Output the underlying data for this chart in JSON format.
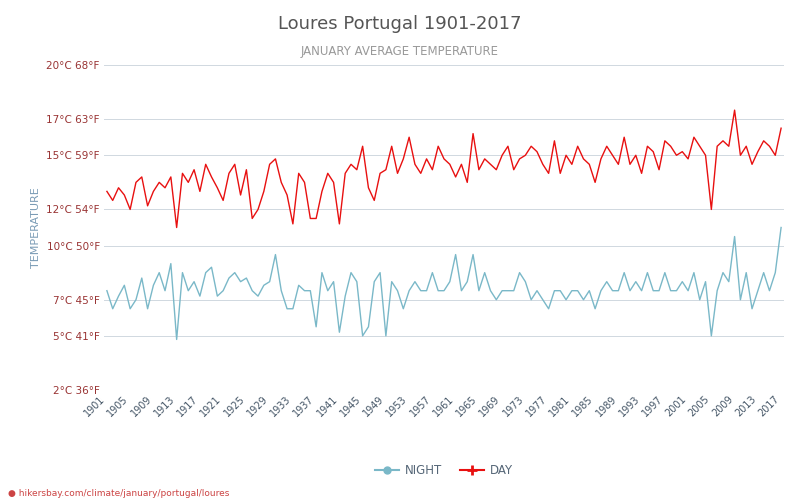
{
  "title": "Loures Portugal 1901-2017",
  "subtitle": "JANUARY AVERAGE TEMPERATURE",
  "ylabel": "TEMPERATURE",
  "xlabel_url": "hikersbay.com/climate/january/portugal/loures",
  "ylim_c": [
    2,
    20
  ],
  "yticks_c": [
    2,
    5,
    7,
    10,
    12,
    15,
    17,
    20
  ],
  "yticks_f": [
    36,
    41,
    45,
    50,
    54,
    59,
    63,
    68
  ],
  "years": [
    1901,
    1902,
    1903,
    1904,
    1905,
    1906,
    1907,
    1908,
    1909,
    1910,
    1911,
    1912,
    1913,
    1914,
    1915,
    1916,
    1917,
    1918,
    1919,
    1920,
    1921,
    1922,
    1923,
    1924,
    1925,
    1926,
    1927,
    1928,
    1929,
    1930,
    1931,
    1932,
    1933,
    1934,
    1935,
    1936,
    1937,
    1938,
    1939,
    1940,
    1941,
    1942,
    1943,
    1944,
    1945,
    1946,
    1947,
    1948,
    1949,
    1950,
    1951,
    1952,
    1953,
    1954,
    1955,
    1956,
    1957,
    1958,
    1959,
    1960,
    1961,
    1962,
    1963,
    1964,
    1965,
    1966,
    1967,
    1968,
    1969,
    1970,
    1971,
    1972,
    1973,
    1974,
    1975,
    1976,
    1977,
    1978,
    1979,
    1980,
    1981,
    1982,
    1983,
    1984,
    1985,
    1986,
    1987,
    1988,
    1989,
    1990,
    1991,
    1992,
    1993,
    1994,
    1995,
    1996,
    1997,
    1998,
    1999,
    2000,
    2001,
    2002,
    2003,
    2004,
    2005,
    2006,
    2007,
    2008,
    2009,
    2010,
    2011,
    2012,
    2013,
    2014,
    2015,
    2016,
    2017
  ],
  "day_temps": [
    13.0,
    12.5,
    13.2,
    12.8,
    12.0,
    13.5,
    13.8,
    12.2,
    13.0,
    13.5,
    13.2,
    13.8,
    11.0,
    14.0,
    13.5,
    14.2,
    13.0,
    14.5,
    13.8,
    13.2,
    12.5,
    14.0,
    14.5,
    12.8,
    14.2,
    11.5,
    12.0,
    13.0,
    14.5,
    14.8,
    13.5,
    12.8,
    11.2,
    14.0,
    13.5,
    11.5,
    11.5,
    13.0,
    14.0,
    13.5,
    11.2,
    14.0,
    14.5,
    14.2,
    15.5,
    13.2,
    12.5,
    14.0,
    14.2,
    15.5,
    14.0,
    14.8,
    16.0,
    14.5,
    14.0,
    14.8,
    14.2,
    15.5,
    14.8,
    14.5,
    13.8,
    14.5,
    13.5,
    16.2,
    14.2,
    14.8,
    14.5,
    14.2,
    15.0,
    15.5,
    14.2,
    14.8,
    15.0,
    15.5,
    15.2,
    14.5,
    14.0,
    15.8,
    14.0,
    15.0,
    14.5,
    15.5,
    14.8,
    14.5,
    13.5,
    14.8,
    15.5,
    15.0,
    14.5,
    16.0,
    14.5,
    15.0,
    14.0,
    15.5,
    15.2,
    14.2,
    15.8,
    15.5,
    15.0,
    15.2,
    14.8,
    16.0,
    15.5,
    15.0,
    12.0,
    15.5,
    15.8,
    15.5,
    17.5,
    15.0,
    15.5,
    14.5,
    15.2,
    15.8,
    15.5,
    15.0,
    16.5
  ],
  "night_temps": [
    7.5,
    6.5,
    7.2,
    7.8,
    6.5,
    7.0,
    8.2,
    6.5,
    7.8,
    8.5,
    7.5,
    9.0,
    4.8,
    8.5,
    7.5,
    8.0,
    7.2,
    8.5,
    8.8,
    7.2,
    7.5,
    8.2,
    8.5,
    8.0,
    8.2,
    7.5,
    7.2,
    7.8,
    8.0,
    9.5,
    7.5,
    6.5,
    6.5,
    7.8,
    7.5,
    7.5,
    5.5,
    8.5,
    7.5,
    8.0,
    5.2,
    7.2,
    8.5,
    8.0,
    5.0,
    5.5,
    8.0,
    8.5,
    5.0,
    8.0,
    7.5,
    6.5,
    7.5,
    8.0,
    7.5,
    7.5,
    8.5,
    7.5,
    7.5,
    8.0,
    9.5,
    7.5,
    8.0,
    9.5,
    7.5,
    8.5,
    7.5,
    7.0,
    7.5,
    7.5,
    7.5,
    8.5,
    8.0,
    7.0,
    7.5,
    7.0,
    6.5,
    7.5,
    7.5,
    7.0,
    7.5,
    7.5,
    7.0,
    7.5,
    6.5,
    7.5,
    8.0,
    7.5,
    7.5,
    8.5,
    7.5,
    8.0,
    7.5,
    8.5,
    7.5,
    7.5,
    8.5,
    7.5,
    7.5,
    8.0,
    7.5,
    8.5,
    7.0,
    8.0,
    5.0,
    7.5,
    8.5,
    8.0,
    10.5,
    7.0,
    8.5,
    6.5,
    7.5,
    8.5,
    7.5,
    8.5,
    11.0
  ],
  "day_color": "#e81010",
  "night_color": "#7ab8c8",
  "grid_color": "#d0d8e0",
  "title_color": "#555555",
  "subtitle_color": "#999999",
  "ylabel_color": "#7a9bb5",
  "ytick_color": "#993333",
  "bg_color": "#ffffff",
  "legend_night_color": "#7ab8c8",
  "legend_day_color": "#e81010",
  "url_color": "#cc4444",
  "legend_text_color": "#556677"
}
